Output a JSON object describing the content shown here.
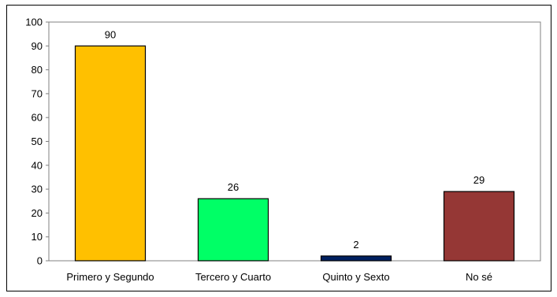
{
  "chart_data": {
    "type": "bar",
    "categories": [
      "Primero y Segundo",
      "Tercero y Cuarto",
      "Quinto y Sexto",
      "No sé"
    ],
    "values": [
      90,
      26,
      2,
      29
    ],
    "colors": [
      "#FFC000",
      "#00FF66",
      "#002060",
      "#953735"
    ],
    "ylim": [
      0,
      100
    ],
    "yticks": [
      "0",
      "10",
      "20",
      "30",
      "40",
      "50",
      "60",
      "70",
      "80",
      "90",
      "100"
    ],
    "data_labels": [
      "90",
      "26",
      "2",
      "29"
    ],
    "title": "",
    "xlabel": "",
    "ylabel": "",
    "grid": false,
    "legend": "none"
  }
}
